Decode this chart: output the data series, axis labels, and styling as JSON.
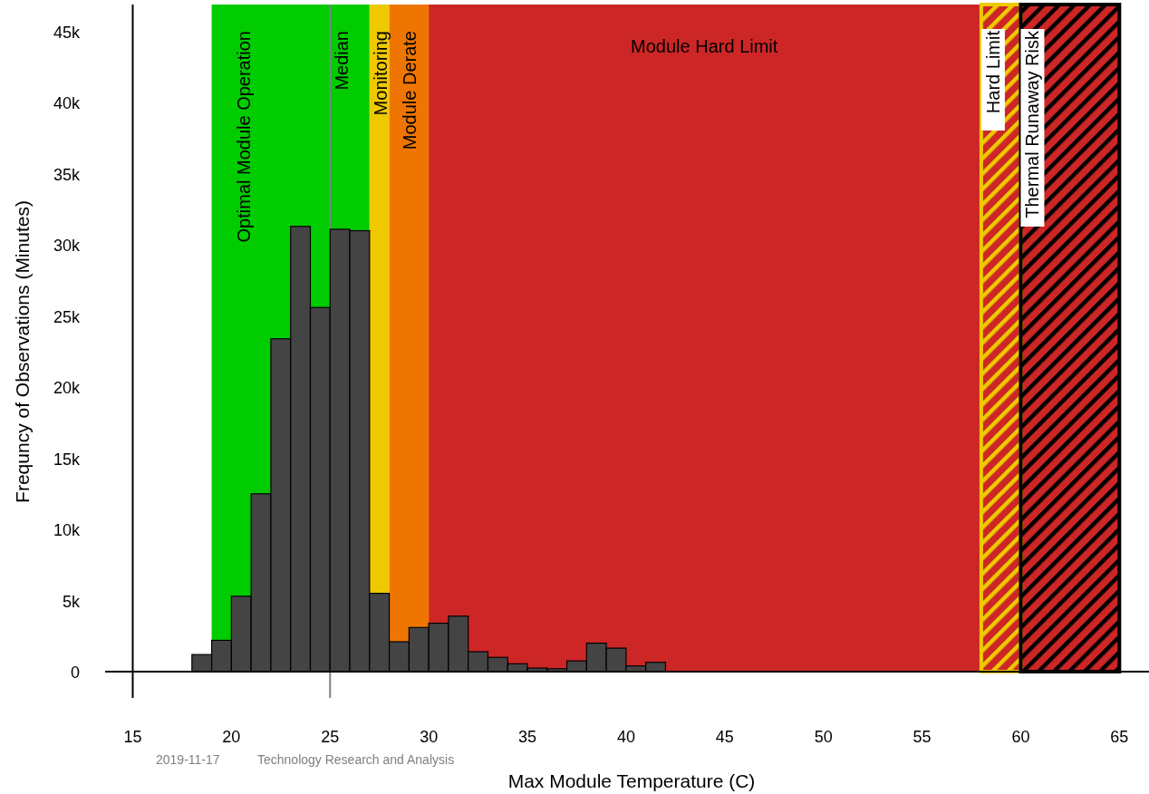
{
  "chart_data": {
    "type": "histogram",
    "xlabel": "Max Module Temperature (C)",
    "ylabel": "Frequncy of Observations (Minutes)",
    "bins": [
      18,
      19,
      20,
      21,
      22,
      23,
      24,
      25,
      26,
      27,
      28,
      29,
      30,
      31,
      32,
      33,
      34,
      35,
      36,
      37,
      38,
      39,
      40,
      41,
      42
    ],
    "values": [
      1200,
      2200,
      5300,
      12500,
      23400,
      31300,
      25600,
      31100,
      31000,
      5500,
      2100,
      3100,
      3400,
      3900,
      1400,
      1000,
      550,
      250,
      200,
      750,
      2000,
      1650,
      400,
      650
    ],
    "color": "#444444",
    "xlim": [
      13.6,
      66.5
    ],
    "xticks": [
      15,
      20,
      25,
      30,
      35,
      40,
      45,
      50,
      55,
      60,
      65
    ],
    "ylim": [
      -1850,
      46900
    ],
    "yticks": [
      {
        "value": 0,
        "label": "0"
      },
      {
        "value": 5000,
        "label": "5k"
      },
      {
        "value": 10000,
        "label": "10k"
      },
      {
        "value": 15000,
        "label": "15k"
      },
      {
        "value": 20000,
        "label": "20k"
      },
      {
        "value": 25000,
        "label": "25k"
      },
      {
        "value": 30000,
        "label": "30k"
      },
      {
        "value": 35000,
        "label": "35k"
      },
      {
        "value": 40000,
        "label": "40k"
      },
      {
        "value": 45000,
        "label": "45k"
      }
    ],
    "bands": [
      {
        "axis": "x",
        "from": 19,
        "to": 27,
        "label": "Optimal Module Operation",
        "color": "#00cc00"
      },
      {
        "axis": "x",
        "from": 27,
        "to": 28,
        "label": "Monitoring",
        "color": "#eec900"
      },
      {
        "axis": "x",
        "from": 28,
        "to": 30,
        "label": "Module Derate",
        "color": "#ee7600"
      },
      {
        "axis": "x",
        "from": 30,
        "to": 65,
        "label": "Module Hard Limit",
        "color": "#cd2626"
      },
      {
        "axis": "x",
        "from": 58,
        "to": 60,
        "label": "Hard Limit",
        "color": "#eec900"
      },
      {
        "axis": "x",
        "from": 60,
        "to": 65,
        "label": "Thermal Runaway Risk",
        "color": "#000000"
      }
    ],
    "ref_lines": [
      {
        "axis": "x",
        "value": 25,
        "label": "Median",
        "color": "#808080"
      }
    ],
    "annotations": [
      "2019-11-17",
      "Technology Research and Analysis"
    ]
  }
}
